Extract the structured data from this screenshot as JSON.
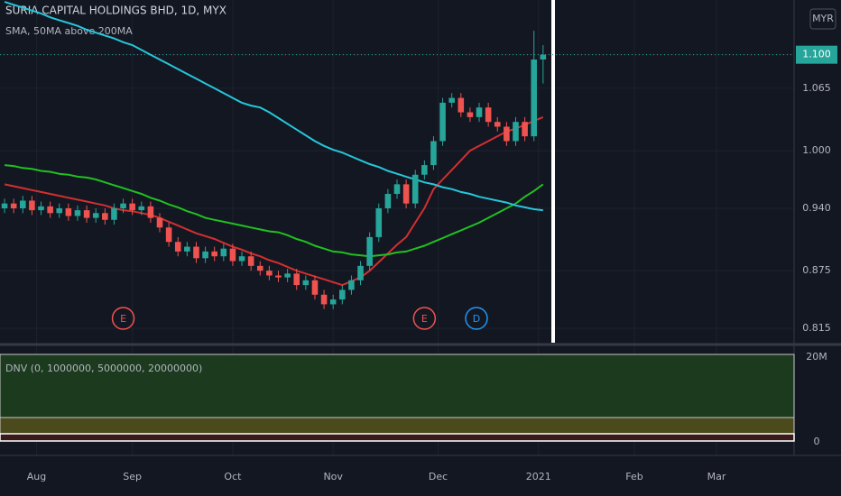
{
  "chart_data": {
    "type": "candlestick",
    "title": "SURIA CAPITAL HOLDINGS BHD, 1D, MYX",
    "currency": "MYR",
    "indicator_label": "SMA, 50MA above 200MA",
    "up_color": "#26a69a",
    "down_color": "#ef5350",
    "open": [
      0.94,
      0.945,
      0.94,
      0.948,
      0.938,
      0.942,
      0.935,
      0.94,
      0.932,
      0.938,
      0.93,
      0.935,
      0.928,
      0.94,
      0.945,
      0.938,
      0.942,
      0.93,
      0.92,
      0.905,
      0.895,
      0.9,
      0.888,
      0.895,
      0.89,
      0.898,
      0.885,
      0.89,
      0.88,
      0.875,
      0.87,
      0.868,
      0.872,
      0.86,
      0.865,
      0.85,
      0.84,
      0.845,
      0.855,
      0.865,
      0.88,
      0.91,
      0.94,
      0.955,
      0.965,
      0.945,
      0.975,
      0.985,
      1.01,
      1.05,
      1.055,
      1.04,
      1.035,
      1.045,
      1.03,
      1.025,
      1.01,
      1.03,
      1.015,
      1.095
    ],
    "high": [
      0.95,
      0.95,
      0.953,
      0.953,
      0.947,
      0.947,
      0.945,
      0.945,
      0.943,
      0.943,
      0.94,
      0.94,
      0.945,
      0.95,
      0.95,
      0.947,
      0.947,
      0.935,
      0.925,
      0.91,
      0.905,
      0.905,
      0.9,
      0.9,
      0.903,
      0.903,
      0.895,
      0.895,
      0.885,
      0.88,
      0.875,
      0.877,
      0.877,
      0.87,
      0.87,
      0.855,
      0.85,
      0.86,
      0.87,
      0.885,
      0.915,
      0.945,
      0.96,
      0.97,
      0.97,
      0.98,
      0.99,
      1.015,
      1.055,
      1.06,
      1.06,
      1.045,
      1.05,
      1.05,
      1.035,
      1.03,
      1.035,
      1.035,
      1.125,
      1.11
    ],
    "low": [
      0.935,
      0.935,
      0.935,
      0.933,
      0.933,
      0.93,
      0.93,
      0.927,
      0.927,
      0.925,
      0.925,
      0.923,
      0.923,
      0.935,
      0.933,
      0.933,
      0.925,
      0.915,
      0.9,
      0.89,
      0.89,
      0.883,
      0.883,
      0.885,
      0.885,
      0.88,
      0.88,
      0.875,
      0.87,
      0.865,
      0.863,
      0.863,
      0.855,
      0.855,
      0.845,
      0.835,
      0.835,
      0.84,
      0.85,
      0.86,
      0.875,
      0.905,
      0.935,
      0.95,
      0.94,
      0.94,
      0.97,
      0.98,
      1.005,
      1.045,
      1.035,
      1.03,
      1.03,
      1.025,
      1.02,
      1.005,
      1.005,
      1.01,
      1.01,
      1.07
    ],
    "close": [
      0.945,
      0.94,
      0.948,
      0.938,
      0.942,
      0.935,
      0.94,
      0.932,
      0.938,
      0.93,
      0.935,
      0.928,
      0.94,
      0.945,
      0.938,
      0.942,
      0.93,
      0.92,
      0.905,
      0.895,
      0.9,
      0.888,
      0.895,
      0.89,
      0.898,
      0.885,
      0.89,
      0.88,
      0.875,
      0.87,
      0.868,
      0.872,
      0.86,
      0.865,
      0.85,
      0.84,
      0.845,
      0.855,
      0.865,
      0.88,
      0.91,
      0.94,
      0.955,
      0.965,
      0.945,
      0.975,
      0.985,
      1.01,
      1.05,
      1.055,
      1.04,
      1.035,
      1.045,
      1.03,
      1.025,
      1.01,
      1.03,
      1.015,
      1.095,
      1.1
    ],
    "series": [
      {
        "color": "#d32f2f",
        "values": [
          0.965,
          0.963,
          0.961,
          0.959,
          0.957,
          0.955,
          0.953,
          0.951,
          0.949,
          0.947,
          0.945,
          0.943,
          0.94,
          0.938,
          0.937,
          0.935,
          0.933,
          0.93,
          0.926,
          0.922,
          0.918,
          0.914,
          0.911,
          0.908,
          0.904,
          0.9,
          0.897,
          0.893,
          0.89,
          0.886,
          0.883,
          0.879,
          0.875,
          0.872,
          0.869,
          0.866,
          0.863,
          0.86,
          0.864,
          0.868,
          0.875,
          0.884,
          0.893,
          0.902,
          0.91,
          0.925,
          0.94,
          0.96,
          0.97,
          0.98,
          0.99,
          1.0,
          1.005,
          1.01,
          1.015,
          1.02,
          1.023,
          1.027,
          1.031,
          1.035
        ]
      },
      {
        "color": "#21c021",
        "values": [
          0.985,
          0.984,
          0.982,
          0.981,
          0.979,
          0.978,
          0.976,
          0.975,
          0.973,
          0.972,
          0.97,
          0.967,
          0.964,
          0.961,
          0.958,
          0.955,
          0.951,
          0.948,
          0.944,
          0.941,
          0.937,
          0.934,
          0.93,
          0.928,
          0.926,
          0.924,
          0.922,
          0.92,
          0.918,
          0.916,
          0.915,
          0.912,
          0.908,
          0.905,
          0.901,
          0.898,
          0.895,
          0.894,
          0.892,
          0.891,
          0.89,
          0.891,
          0.892,
          0.894,
          0.895,
          0.898,
          0.901,
          0.905,
          0.909,
          0.913,
          0.917,
          0.921,
          0.925,
          0.93,
          0.935,
          0.94,
          0.945,
          0.952,
          0.958,
          0.965
        ]
      },
      {
        "color": "#26c6da",
        "values": [
          1.155,
          1.152,
          1.149,
          1.146,
          1.143,
          1.139,
          1.136,
          1.133,
          1.13,
          1.126,
          1.123,
          1.12,
          1.117,
          1.113,
          1.11,
          1.105,
          1.1,
          1.095,
          1.09,
          1.085,
          1.08,
          1.075,
          1.07,
          1.065,
          1.06,
          1.055,
          1.05,
          1.047,
          1.045,
          1.04,
          1.034,
          1.028,
          1.022,
          1.016,
          1.01,
          1.005,
          1.001,
          0.998,
          0.994,
          0.99,
          0.986,
          0.983,
          0.979,
          0.976,
          0.973,
          0.97,
          0.967,
          0.965,
          0.962,
          0.96,
          0.957,
          0.955,
          0.952,
          0.95,
          0.948,
          0.946,
          0.943,
          0.941,
          0.939,
          0.938
        ]
      }
    ],
    "ylim": [
      0.8,
      1.157
    ],
    "yticks": [
      {
        "value": 0.815,
        "label": "0.815"
      },
      {
        "value": 0.875,
        "label": "0.875"
      },
      {
        "value": 0.94,
        "label": "0.940"
      },
      {
        "value": 1.0,
        "label": "1.000"
      },
      {
        "value": 1.065,
        "label": "1.065"
      },
      {
        "value": 1.1,
        "label": "1.100"
      }
    ],
    "xlim": [
      -0.5,
      86.5
    ],
    "xticks": [
      {
        "value": 3.5,
        "label": "Aug"
      },
      {
        "value": 14,
        "label": "Sep"
      },
      {
        "value": 25,
        "label": "Oct"
      },
      {
        "value": 36,
        "label": "Nov"
      },
      {
        "value": 47.5,
        "label": "Dec"
      },
      {
        "value": 58.5,
        "label": "2021"
      },
      {
        "value": 69,
        "label": "Feb"
      },
      {
        "value": 78,
        "label": "Mar"
      }
    ],
    "events": [
      {
        "label": "E",
        "index": 13,
        "color": "#ef5350"
      },
      {
        "label": "E",
        "index": 46,
        "color": "#ef5350"
      },
      {
        "label": "D",
        "index": 51.7,
        "color": "#2196f3"
      }
    ],
    "panel": {
      "title": "DNV (0, 1000000, 5000000, 20000000)",
      "yticks": [
        {
          "value": 20000000,
          "label": "20M"
        },
        0
      ]
    }
  }
}
